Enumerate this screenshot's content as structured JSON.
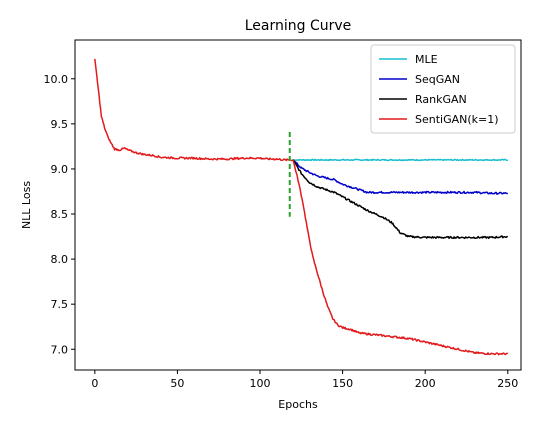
{
  "chart_data": {
    "type": "line",
    "title": "Learning Curve",
    "xlabel": "Epochs",
    "ylabel": "NLL Loss",
    "xlim": [
      -12,
      258
    ],
    "ylim": [
      6.77,
      10.43
    ],
    "xticks": [
      0,
      50,
      100,
      150,
      200,
      250
    ],
    "xtick_labels": [
      "0",
      "50",
      "100",
      "150",
      "200",
      "250"
    ],
    "yticks": [
      7.0,
      7.5,
      8.0,
      8.5,
      9.0,
      9.5,
      10.0
    ],
    "ytick_labels": [
      "7.0",
      "7.5",
      "8.0",
      "8.5",
      "9.0",
      "9.5",
      "10.0"
    ],
    "grid": false,
    "legend_position": "top-right",
    "pretrain": {
      "x": [
        0,
        2,
        4,
        6,
        8,
        10,
        12,
        15,
        18,
        20,
        25,
        30,
        35,
        40,
        50,
        60,
        70,
        80,
        90,
        100,
        105,
        110,
        115,
        120
      ],
      "y": [
        10.22,
        9.9,
        9.58,
        9.45,
        9.35,
        9.28,
        9.22,
        9.21,
        9.23,
        9.21,
        9.18,
        9.16,
        9.15,
        9.13,
        9.12,
        9.12,
        9.11,
        9.11,
        9.12,
        9.12,
        9.11,
        9.11,
        9.1,
        9.1
      ]
    },
    "series": [
      {
        "name": "MLE",
        "color": "#17becf",
        "x": [
          120,
          130,
          140,
          150,
          160,
          170,
          180,
          190,
          200,
          210,
          220,
          230,
          240,
          250
        ],
        "y": [
          9.1,
          9.1,
          9.1,
          9.1,
          9.1,
          9.1,
          9.1,
          9.1,
          9.1,
          9.1,
          9.1,
          9.1,
          9.1,
          9.1
        ]
      },
      {
        "name": "SeqGAN",
        "color": "#0000cc",
        "x": [
          120,
          125,
          130,
          135,
          140,
          145,
          150,
          155,
          160,
          165,
          170,
          180,
          190,
          200,
          210,
          220,
          230,
          240,
          250
        ],
        "y": [
          9.1,
          9.01,
          8.96,
          8.92,
          8.9,
          8.88,
          8.83,
          8.8,
          8.77,
          8.74,
          8.74,
          8.74,
          8.74,
          8.74,
          8.74,
          8.74,
          8.74,
          8.73,
          8.73
        ]
      },
      {
        "name": "RankGAN",
        "color": "#000000",
        "x": [
          120,
          125,
          130,
          135,
          140,
          145,
          150,
          155,
          160,
          165,
          170,
          175,
          180,
          185,
          190,
          200,
          210,
          220,
          230,
          240,
          250
        ],
        "y": [
          9.1,
          8.95,
          8.85,
          8.8,
          8.77,
          8.74,
          8.69,
          8.64,
          8.59,
          8.54,
          8.5,
          8.46,
          8.4,
          8.29,
          8.25,
          8.24,
          8.24,
          8.24,
          8.24,
          8.24,
          8.25
        ]
      },
      {
        "name": "SentiGAN(k=1)",
        "color": "#e31a1c",
        "x": [
          120,
          123,
          126,
          129,
          132,
          135,
          138,
          141,
          144,
          147,
          150,
          155,
          160,
          170,
          180,
          190,
          200,
          210,
          220,
          230,
          240,
          250
        ],
        "y": [
          9.1,
          8.88,
          8.62,
          8.3,
          8.02,
          7.83,
          7.64,
          7.47,
          7.34,
          7.27,
          7.24,
          7.22,
          7.18,
          7.16,
          7.14,
          7.12,
          7.08,
          7.04,
          7.0,
          6.96,
          6.95,
          6.95
        ]
      }
    ],
    "marker_line": {
      "x": 118,
      "y_range": [
        8.47,
        9.41
      ],
      "color": "#2ca02c"
    }
  }
}
